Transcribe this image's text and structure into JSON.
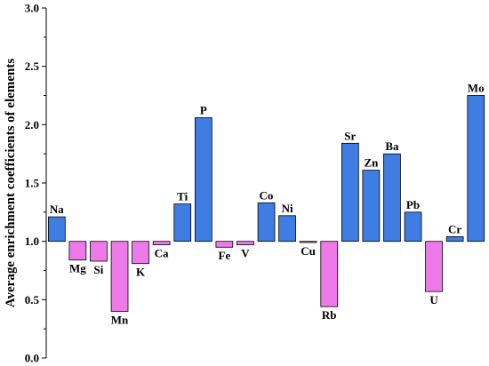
{
  "chart_data": {
    "type": "bar",
    "title": "",
    "xlabel": "",
    "ylabel": "Average enrichment coefficients of elements",
    "ylim": [
      0.0,
      3.0
    ],
    "yticks": [
      "0.0",
      "0.5",
      "1.0",
      "1.5",
      "2.0",
      "2.5",
      "3.0"
    ],
    "baseline": 1.0,
    "grid": false,
    "categories": [
      "Na",
      "Mg",
      "Si",
      "Mn",
      "K",
      "Ca",
      "Ti",
      "P",
      "Fe",
      "V",
      "Co",
      "Ni",
      "Cu",
      "Rb",
      "Sr",
      "Zn",
      "Ba",
      "Pb",
      "U",
      "Cr",
      "Mo"
    ],
    "values": [
      1.21,
      0.84,
      0.83,
      0.4,
      0.81,
      0.97,
      1.32,
      2.06,
      0.95,
      0.97,
      1.33,
      1.22,
      0.99,
      0.44,
      1.84,
      1.61,
      1.75,
      1.25,
      0.57,
      1.04,
      2.25
    ],
    "colors": {
      "above": "#3f7de2",
      "below": "#ee7ae9",
      "stroke": "#000000"
    }
  }
}
